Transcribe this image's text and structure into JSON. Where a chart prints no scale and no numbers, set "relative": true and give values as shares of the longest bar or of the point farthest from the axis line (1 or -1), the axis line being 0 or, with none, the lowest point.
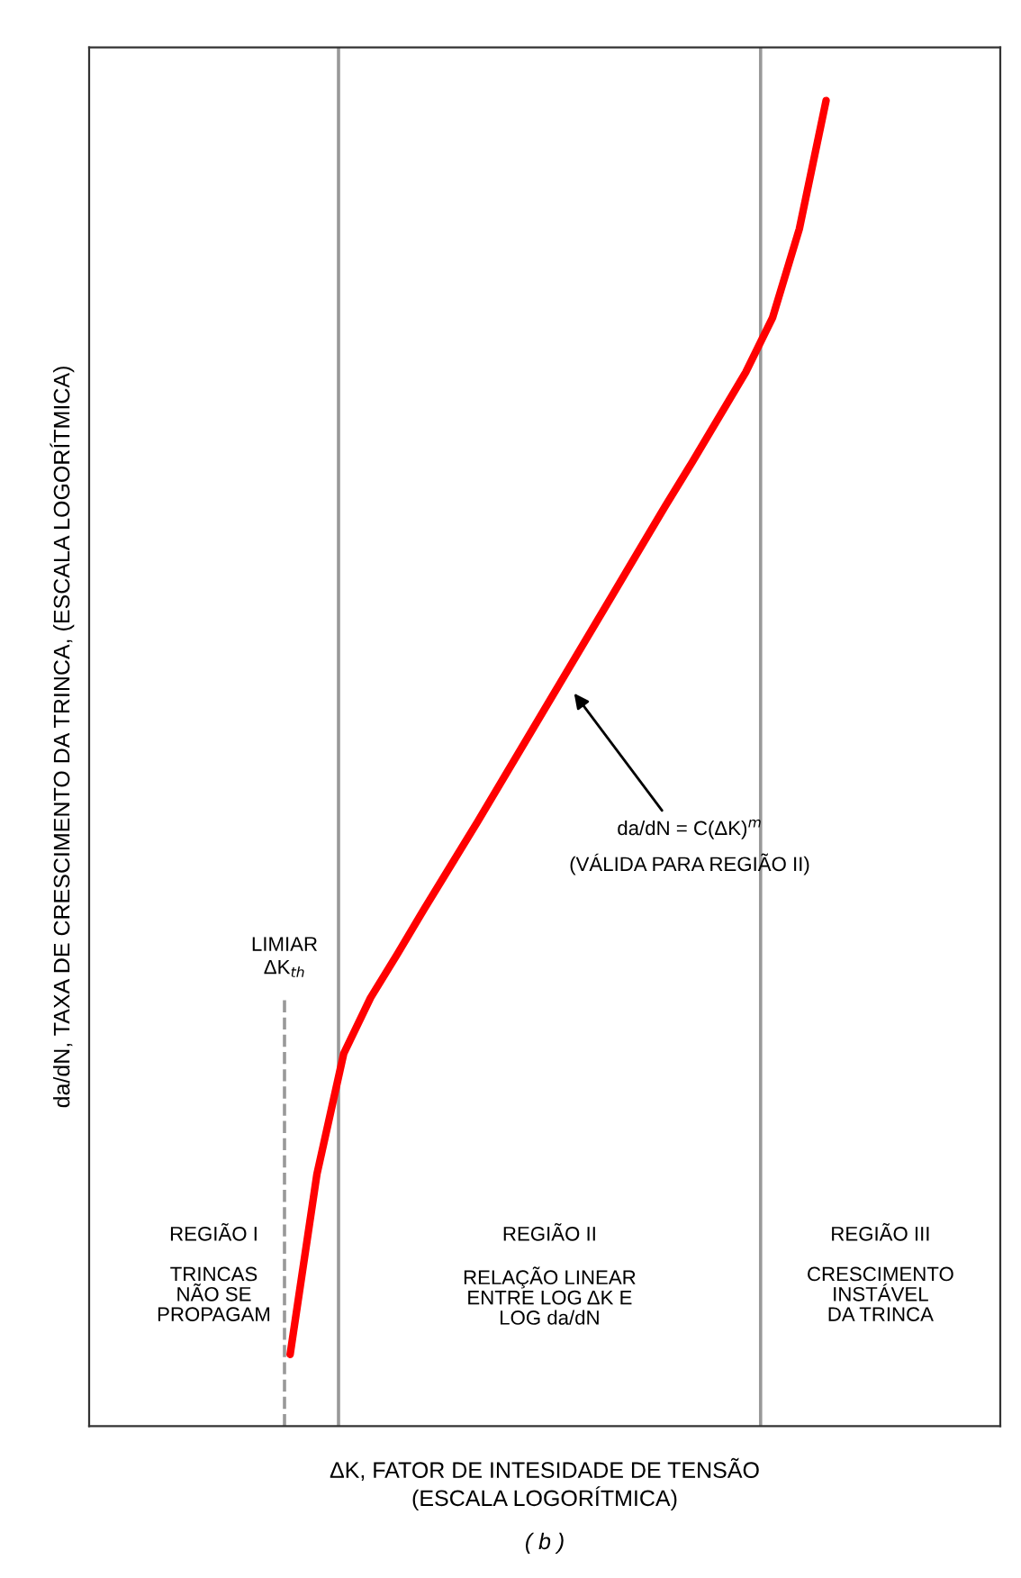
{
  "chart_data": {
    "type": "line",
    "relative": true,
    "xlabel": "ΔK, FATOR DE INTESIDADE DE TENSÃO\n(ESCALA LOGORÍTMICA)",
    "ylabel": "da/dN, TAXA DE CRESCIMENTO DA TRINCA, (ESCALA LOGORÍTMICA)",
    "categories": [
      null,
      null,
      null,
      null,
      null,
      null,
      null,
      null,
      null,
      null,
      null,
      null,
      null,
      null,
      null,
      null,
      null,
      null,
      null,
      null,
      null,
      null,
      null,
      null,
      null,
      null,
      null,
      null,
      null,
      null,
      null,
      null,
      null,
      null
    ],
    "series": [
      {
        "color": "#ff0000",
        "values": [
          null,
          null,
          null,
          null,
          null,
          null,
          null,
          0.054,
          0.19,
          0.281,
          0.323,
          0.356,
          0.39,
          0.423,
          0.456,
          0.49,
          0.524,
          0.558,
          0.592,
          0.626,
          0.66,
          0.694,
          0.727,
          0.761,
          0.795,
          0.836,
          0.903,
          1,
          null,
          null,
          null,
          null,
          null,
          null
        ]
      }
    ],
    "annotations": [
      "REGIÃO I\n\nTRINCAS\nNÃO SE\nPROPAGAM",
      "REGIÃO II\n\nRELAÇÃO LINEAR\nENTRE LOG ΔK E\nLOG da/dN",
      "REGIÃO III\n\nCRESCIMENTO\nINSTÁVEL\nDA TRINCA",
      "LIMIAR\nΔK$_{th}$",
      "da/dN = C(ΔK)$^{m}$\n(VÁLIDA PARA REGIÃO II)",
      "( b )"
    ],
    "grid": false,
    "legend": false
  }
}
